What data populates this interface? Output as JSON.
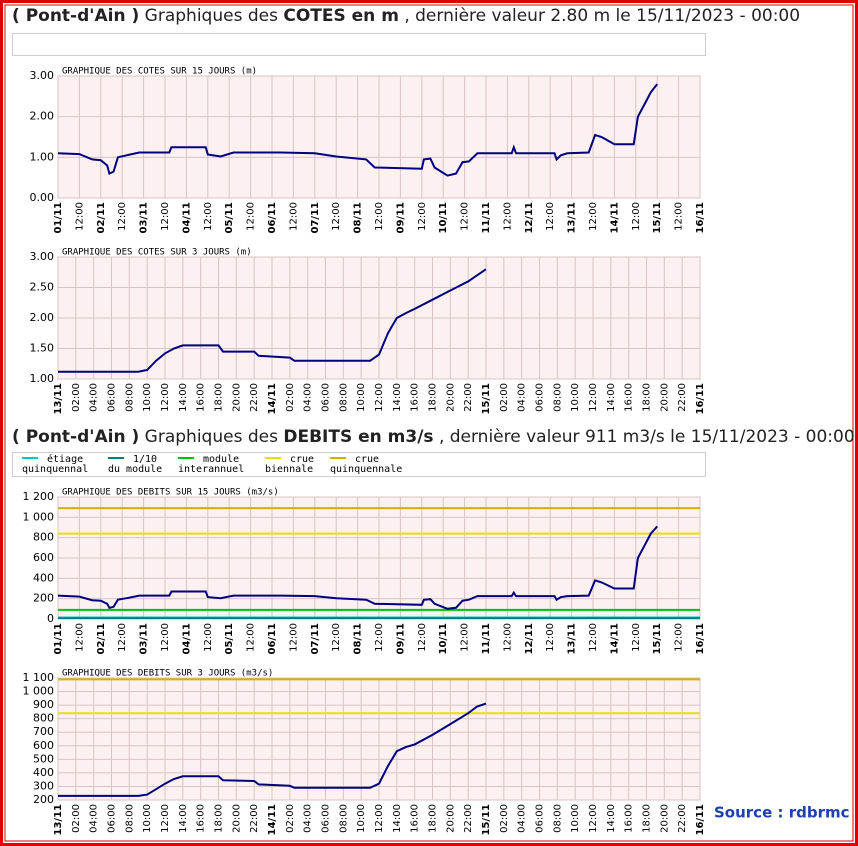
{
  "header_cotes": {
    "station": "( Pont-d'Ain )",
    "prefix": "Graphiques des",
    "subject": "COTES en m",
    "suffix": ", dernière valeur 2.80 m le 15/11/2023 - 00:00"
  },
  "header_debits": {
    "station": "( Pont-d'Ain )",
    "prefix": "Graphiques des",
    "subject": "DEBITS en m3/s",
    "suffix": ", dernière valeur 911 m3/s le 15/11/2023 - 00:00"
  },
  "legend": {
    "items": [
      {
        "lines": [
          "étiage",
          "quinquennal"
        ],
        "color": "#00c8c8"
      },
      {
        "lines": [
          "1/10",
          "du module"
        ],
        "color": "#008080"
      },
      {
        "lines": [
          "module",
          "interannuel"
        ],
        "color": "#00c000"
      },
      {
        "lines": [
          "crue",
          "biennale"
        ],
        "color": "#e8e000"
      },
      {
        "lines": [
          "crue",
          "quinquennale"
        ],
        "color": "#d4b000"
      }
    ]
  },
  "source": "Source : rdbrmc",
  "chart_data": [
    {
      "type": "line",
      "title": "GRAPHIQUE DES COTES SUR 15 JOURS (m)",
      "xlim": [
        0,
        15
      ],
      "ylim": [
        0,
        3
      ],
      "yticks": [
        {
          "value": 0,
          "label": "0.00"
        },
        {
          "value": 1,
          "label": "1.00"
        },
        {
          "value": 2,
          "label": "2.00"
        },
        {
          "value": 3,
          "label": "3.00"
        }
      ],
      "xticks": [
        {
          "value": 0,
          "label": "01/11"
        },
        {
          "value": 0.5,
          "label": "12:00"
        },
        {
          "value": 1,
          "label": "02/11"
        },
        {
          "value": 1.5,
          "label": "12:00"
        },
        {
          "value": 2,
          "label": "03/11"
        },
        {
          "value": 2.5,
          "label": "12:00"
        },
        {
          "value": 3,
          "label": "04/11"
        },
        {
          "value": 3.5,
          "label": "12:00"
        },
        {
          "value": 4,
          "label": "05/11"
        },
        {
          "value": 4.5,
          "label": "12:00"
        },
        {
          "value": 5,
          "label": "06/11"
        },
        {
          "value": 5.5,
          "label": "12:00"
        },
        {
          "value": 6,
          "label": "07/11"
        },
        {
          "value": 6.5,
          "label": "12:00"
        },
        {
          "value": 7,
          "label": "08/11"
        },
        {
          "value": 7.5,
          "label": "12:00"
        },
        {
          "value": 8,
          "label": "09/11"
        },
        {
          "value": 8.5,
          "label": "12:00"
        },
        {
          "value": 9,
          "label": "10/11"
        },
        {
          "value": 9.5,
          "label": "12:00"
        },
        {
          "value": 10,
          "label": "11/11"
        },
        {
          "value": 10.5,
          "label": "12:00"
        },
        {
          "value": 11,
          "label": "12/11"
        },
        {
          "value": 11.5,
          "label": "12:00"
        },
        {
          "value": 12,
          "label": "13/11"
        },
        {
          "value": 12.5,
          "label": "12:00"
        },
        {
          "value": 13,
          "label": "14/11"
        },
        {
          "value": 13.5,
          "label": "12:00"
        },
        {
          "value": 14,
          "label": "15/11"
        },
        {
          "value": 14.5,
          "label": "12:00"
        },
        {
          "value": 15,
          "label": "16/11"
        }
      ],
      "grid": true,
      "series": [
        {
          "color": "#000080",
          "x": [
            0,
            0.5,
            0.8,
            1.0,
            1.15,
            1.2,
            1.3,
            1.4,
            1.6,
            1.9,
            2.6,
            2.65,
            3.45,
            3.5,
            3.8,
            4.1,
            5.2,
            6.0,
            6.5,
            7.2,
            7.4,
            8.5,
            8.55,
            8.7,
            8.8,
            9.1,
            9.3,
            9.45,
            9.6,
            9.8,
            10.6,
            10.65,
            10.7,
            11.6,
            11.65,
            11.75,
            11.9,
            12.4,
            12.55,
            12.7,
            13.0,
            13.45,
            13.55,
            13.7,
            13.85,
            14.0
          ],
          "values": [
            1.1,
            1.08,
            0.95,
            0.93,
            0.8,
            0.6,
            0.65,
            1.0,
            1.05,
            1.12,
            1.12,
            1.25,
            1.25,
            1.07,
            1.02,
            1.12,
            1.12,
            1.1,
            1.02,
            0.95,
            0.75,
            0.72,
            0.95,
            0.97,
            0.75,
            0.55,
            0.6,
            0.88,
            0.9,
            1.1,
            1.1,
            1.25,
            1.1,
            1.1,
            0.95,
            1.05,
            1.1,
            1.12,
            1.55,
            1.5,
            1.32,
            1.32,
            2.0,
            2.3,
            2.6,
            2.8
          ]
        }
      ]
    },
    {
      "type": "line",
      "title": "GRAPHIQUE DES COTES SUR 3 JOURS (m)",
      "xlim": [
        0,
        72
      ],
      "ylim": [
        1,
        3
      ],
      "yticks": [
        {
          "value": 1,
          "label": "1.00"
        },
        {
          "value": 1.5,
          "label": "1.50"
        },
        {
          "value": 2,
          "label": "2.00"
        },
        {
          "value": 2.5,
          "label": "2.50"
        },
        {
          "value": 3,
          "label": "3.00"
        }
      ],
      "xticks": [
        {
          "value": 0,
          "label": "13/11"
        },
        {
          "value": 2,
          "label": "02:00"
        },
        {
          "value": 4,
          "label": "04:00"
        },
        {
          "value": 6,
          "label": "06:00"
        },
        {
          "value": 8,
          "label": "08:00"
        },
        {
          "value": 10,
          "label": "10:00"
        },
        {
          "value": 12,
          "label": "12:00"
        },
        {
          "value": 14,
          "label": "14:00"
        },
        {
          "value": 16,
          "label": "16:00"
        },
        {
          "value": 18,
          "label": "18:00"
        },
        {
          "value": 20,
          "label": "20:00"
        },
        {
          "value": 22,
          "label": "22:00"
        },
        {
          "value": 24,
          "label": "14/11"
        },
        {
          "value": 26,
          "label": "02:00"
        },
        {
          "value": 28,
          "label": "04:00"
        },
        {
          "value": 30,
          "label": "06:00"
        },
        {
          "value": 32,
          "label": "08:00"
        },
        {
          "value": 34,
          "label": "10:00"
        },
        {
          "value": 36,
          "label": "12:00"
        },
        {
          "value": 38,
          "label": "14:00"
        },
        {
          "value": 40,
          "label": "16:00"
        },
        {
          "value": 42,
          "label": "18:00"
        },
        {
          "value": 44,
          "label": "20:00"
        },
        {
          "value": 46,
          "label": "22:00"
        },
        {
          "value": 48,
          "label": "15/11"
        },
        {
          "value": 50,
          "label": "02:00"
        },
        {
          "value": 52,
          "label": "04:00"
        },
        {
          "value": 54,
          "label": "06:00"
        },
        {
          "value": 56,
          "label": "08:00"
        },
        {
          "value": 58,
          "label": "10:00"
        },
        {
          "value": 60,
          "label": "12:00"
        },
        {
          "value": 62,
          "label": "14:00"
        },
        {
          "value": 64,
          "label": "16:00"
        },
        {
          "value": 66,
          "label": "18:00"
        },
        {
          "value": 68,
          "label": "20:00"
        },
        {
          "value": 70,
          "label": "22:00"
        },
        {
          "value": 72,
          "label": "16/11"
        }
      ],
      "grid": true,
      "series": [
        {
          "color": "#000080",
          "x": [
            0,
            9,
            10,
            11,
            12,
            13,
            14,
            18,
            18.5,
            22,
            22.5,
            26,
            26.5,
            35,
            36,
            37,
            38,
            39,
            40,
            42,
            44,
            46,
            47,
            48
          ],
          "values": [
            1.12,
            1.12,
            1.15,
            1.3,
            1.42,
            1.5,
            1.55,
            1.55,
            1.45,
            1.45,
            1.38,
            1.35,
            1.3,
            1.3,
            1.4,
            1.75,
            2.0,
            2.08,
            2.15,
            2.3,
            2.45,
            2.6,
            2.7,
            2.8
          ]
        }
      ]
    },
    {
      "type": "line",
      "title": "GRAPHIQUE DES DEBITS SUR 15 JOURS (m3/s)",
      "xlim": [
        0,
        15
      ],
      "ylim": [
        0,
        1200
      ],
      "yticks": [
        0,
        200,
        400,
        600,
        800,
        {
          "value": 1000,
          "label": "1 000"
        },
        {
          "value": 1200,
          "label": "1 200"
        }
      ],
      "xticks": [
        {
          "value": 0,
          "label": "01/11"
        },
        {
          "value": 0.5,
          "label": "12:00"
        },
        {
          "value": 1,
          "label": "02/11"
        },
        {
          "value": 1.5,
          "label": "12:00"
        },
        {
          "value": 2,
          "label": "03/11"
        },
        {
          "value": 2.5,
          "label": "12:00"
        },
        {
          "value": 3,
          "label": "04/11"
        },
        {
          "value": 3.5,
          "label": "12:00"
        },
        {
          "value": 4,
          "label": "05/11"
        },
        {
          "value": 4.5,
          "label": "12:00"
        },
        {
          "value": 5,
          "label": "06/11"
        },
        {
          "value": 5.5,
          "label": "12:00"
        },
        {
          "value": 6,
          "label": "07/11"
        },
        {
          "value": 6.5,
          "label": "12:00"
        },
        {
          "value": 7,
          "label": "08/11"
        },
        {
          "value": 7.5,
          "label": "12:00"
        },
        {
          "value": 8,
          "label": "09/11"
        },
        {
          "value": 8.5,
          "label": "12:00"
        },
        {
          "value": 9,
          "label": "10/11"
        },
        {
          "value": 9.5,
          "label": "12:00"
        },
        {
          "value": 10,
          "label": "11/11"
        },
        {
          "value": 10.5,
          "label": "12:00"
        },
        {
          "value": 11,
          "label": "12/11"
        },
        {
          "value": 11.5,
          "label": "12:00"
        },
        {
          "value": 12,
          "label": "13/11"
        },
        {
          "value": 12.5,
          "label": "12:00"
        },
        {
          "value": 13,
          "label": "14/11"
        },
        {
          "value": 13.5,
          "label": "12:00"
        },
        {
          "value": 14,
          "label": "15/11"
        },
        {
          "value": 14.5,
          "label": "12:00"
        },
        {
          "value": 15,
          "label": "16/11"
        }
      ],
      "grid": true,
      "reference_lines": [
        {
          "value": 1090,
          "color": "#d4b000"
        },
        {
          "value": 840,
          "color": "#e8e000"
        },
        {
          "value": 90,
          "color": "#00c000"
        },
        {
          "value": 15,
          "color": "#00c8c8"
        },
        {
          "value": 8,
          "color": "#008080"
        }
      ],
      "series": [
        {
          "color": "#000080",
          "x": [
            0,
            0.5,
            0.8,
            1.0,
            1.15,
            1.2,
            1.3,
            1.4,
            1.6,
            1.9,
            2.6,
            2.65,
            3.45,
            3.5,
            3.8,
            4.1,
            5.2,
            6.0,
            6.5,
            7.2,
            7.4,
            8.5,
            8.55,
            8.7,
            8.8,
            9.1,
            9.3,
            9.45,
            9.6,
            9.8,
            10.6,
            10.65,
            10.7,
            11.6,
            11.65,
            11.75,
            11.9,
            12.4,
            12.55,
            12.7,
            13.0,
            13.45,
            13.55,
            13.7,
            13.85,
            14.0
          ],
          "values": [
            230,
            220,
            185,
            180,
            150,
            110,
            120,
            190,
            205,
            230,
            230,
            270,
            270,
            215,
            205,
            230,
            230,
            225,
            205,
            190,
            150,
            140,
            190,
            195,
            150,
            100,
            110,
            180,
            190,
            225,
            225,
            260,
            225,
            225,
            190,
            215,
            225,
            230,
            380,
            360,
            300,
            300,
            600,
            720,
            840,
            911
          ]
        }
      ]
    },
    {
      "type": "line",
      "title": "GRAPHIQUE DES DEBITS SUR 3 JOURS (m3/s)",
      "xlim": [
        0,
        72
      ],
      "ylim": [
        200,
        1100
      ],
      "yticks": [
        200,
        300,
        400,
        500,
        600,
        700,
        800,
        900,
        {
          "value": 1000,
          "label": "1 000"
        },
        {
          "value": 1100,
          "label": "1 100"
        }
      ],
      "xticks": [
        {
          "value": 0,
          "label": "13/11"
        },
        {
          "value": 2,
          "label": "02:00"
        },
        {
          "value": 4,
          "label": "04:00"
        },
        {
          "value": 6,
          "label": "06:00"
        },
        {
          "value": 8,
          "label": "08:00"
        },
        {
          "value": 10,
          "label": "10:00"
        },
        {
          "value": 12,
          "label": "12:00"
        },
        {
          "value": 14,
          "label": "14:00"
        },
        {
          "value": 16,
          "label": "16:00"
        },
        {
          "value": 18,
          "label": "18:00"
        },
        {
          "value": 20,
          "label": "20:00"
        },
        {
          "value": 22,
          "label": "22:00"
        },
        {
          "value": 24,
          "label": "14/11"
        },
        {
          "value": 26,
          "label": "02:00"
        },
        {
          "value": 28,
          "label": "04:00"
        },
        {
          "value": 30,
          "label": "06:00"
        },
        {
          "value": 32,
          "label": "08:00"
        },
        {
          "value": 34,
          "label": "10:00"
        },
        {
          "value": 36,
          "label": "12:00"
        },
        {
          "value": 38,
          "label": "14:00"
        },
        {
          "value": 40,
          "label": "16:00"
        },
        {
          "value": 42,
          "label": "18:00"
        },
        {
          "value": 44,
          "label": "20:00"
        },
        {
          "value": 46,
          "label": "22:00"
        },
        {
          "value": 48,
          "label": "15/11"
        },
        {
          "value": 50,
          "label": "02:00"
        },
        {
          "value": 52,
          "label": "04:00"
        },
        {
          "value": 54,
          "label": "06:00"
        },
        {
          "value": 56,
          "label": "08:00"
        },
        {
          "value": 58,
          "label": "10:00"
        },
        {
          "value": 60,
          "label": "12:00"
        },
        {
          "value": 62,
          "label": "14:00"
        },
        {
          "value": 64,
          "label": "16:00"
        },
        {
          "value": 66,
          "label": "18:00"
        },
        {
          "value": 68,
          "label": "20:00"
        },
        {
          "value": 70,
          "label": "22:00"
        },
        {
          "value": 72,
          "label": "16/11"
        }
      ],
      "grid": true,
      "reference_lines": [
        {
          "value": 1090,
          "color": "#d4b000"
        },
        {
          "value": 840,
          "color": "#e8e000"
        }
      ],
      "series": [
        {
          "color": "#000080",
          "x": [
            0,
            9,
            10,
            11,
            12,
            13,
            14,
            18,
            18.5,
            22,
            22.5,
            26,
            26.5,
            35,
            36,
            37,
            38,
            39,
            40,
            42,
            44,
            46,
            47,
            48
          ],
          "values": [
            230,
            230,
            240,
            280,
            320,
            355,
            375,
            375,
            345,
            340,
            315,
            305,
            290,
            290,
            320,
            450,
            560,
            590,
            610,
            680,
            760,
            840,
            890,
            911
          ]
        }
      ]
    }
  ]
}
